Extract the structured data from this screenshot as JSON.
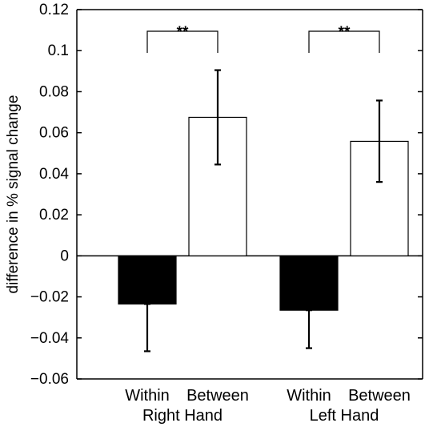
{
  "chart_data": {
    "type": "bar",
    "title": "",
    "xlabel": "",
    "ylabel": "difference in % signal change",
    "ylim": [
      -0.06,
      0.12
    ],
    "yticks": [
      -0.06,
      -0.04,
      -0.02,
      0,
      0.02,
      0.04,
      0.06,
      0.08,
      0.1,
      0.12
    ],
    "ytick_labels": [
      "−0.06",
      "−0.04",
      "−0.02",
      "0",
      "0.02",
      "0.04",
      "0.06",
      "0.08",
      "0.1",
      "0.12"
    ],
    "grid": false,
    "groups": [
      {
        "label": "Right Hand",
        "bars": [
          {
            "category": "Within",
            "value": -0.0235,
            "error_low": -0.0465,
            "error_high": -0.0235,
            "color": "#000000"
          },
          {
            "category": "Between",
            "value": 0.0675,
            "error_low": 0.0445,
            "error_high": 0.0905,
            "color": "#ffffff"
          }
        ],
        "significance": "**"
      },
      {
        "label": "Left Hand",
        "bars": [
          {
            "category": "Within",
            "value": -0.0265,
            "error_low": -0.045,
            "error_high": -0.0265,
            "color": "#000000"
          },
          {
            "category": "Between",
            "value": 0.0558,
            "error_low": 0.036,
            "error_high": 0.0757,
            "color": "#ffffff"
          }
        ],
        "significance": "**"
      }
    ]
  }
}
